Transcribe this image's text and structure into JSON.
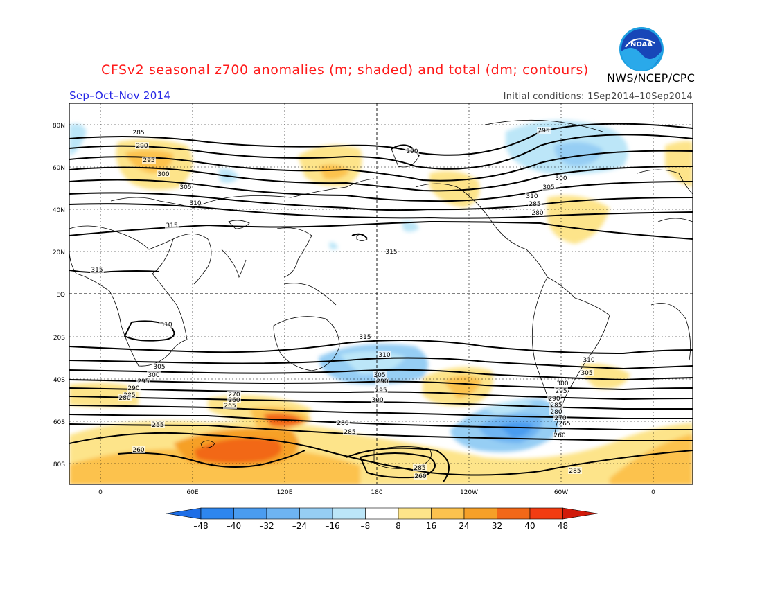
{
  "header": {
    "title": "CFSv2 seasonal z700 anomalies (m; shaded) and total (dm; contours)",
    "agency": "NWS/NCEP/CPC",
    "season": "Sep–Oct–Nov 2014",
    "initial_conditions": "Initial conditions: 1Sep2014–10Sep2014",
    "logo_text": "NOAA"
  },
  "map": {
    "lat_labels": [
      "80N",
      "60N",
      "40N",
      "20N",
      "EQ",
      "20S",
      "40S",
      "60S",
      "80S"
    ],
    "lon_labels": [
      "0",
      "60E",
      "120E",
      "180",
      "120W",
      "60W",
      "0"
    ],
    "contour_labels": [
      "285",
      "290",
      "295",
      "300",
      "305",
      "310",
      "315",
      "315",
      "315",
      "310",
      "305",
      "300",
      "295",
      "290",
      "285",
      "280",
      "270",
      "260",
      "265",
      "255",
      "260",
      "285",
      "260",
      "280",
      "285",
      "290",
      "295",
      "300",
      "305",
      "310",
      "315",
      "310",
      "305",
      "300",
      "295",
      "290",
      "285",
      "280",
      "270",
      "265",
      "260",
      "285",
      "290",
      "295",
      "300",
      "305",
      "310",
      "285",
      "280"
    ]
  },
  "colorbar": {
    "ticks": [
      "–48",
      "–40",
      "–32",
      "–24",
      "–16",
      "–8",
      "8",
      "16",
      "24",
      "32",
      "40",
      "48"
    ],
    "colors": [
      "#1e6ee6",
      "#2e86ee",
      "#4a9cf0",
      "#6eb4f2",
      "#96cef4",
      "#bce6f8",
      "#ffffff",
      "#fde48a",
      "#fcc24e",
      "#f6a028",
      "#f26818",
      "#f23c12",
      "#d01a0a"
    ]
  }
}
